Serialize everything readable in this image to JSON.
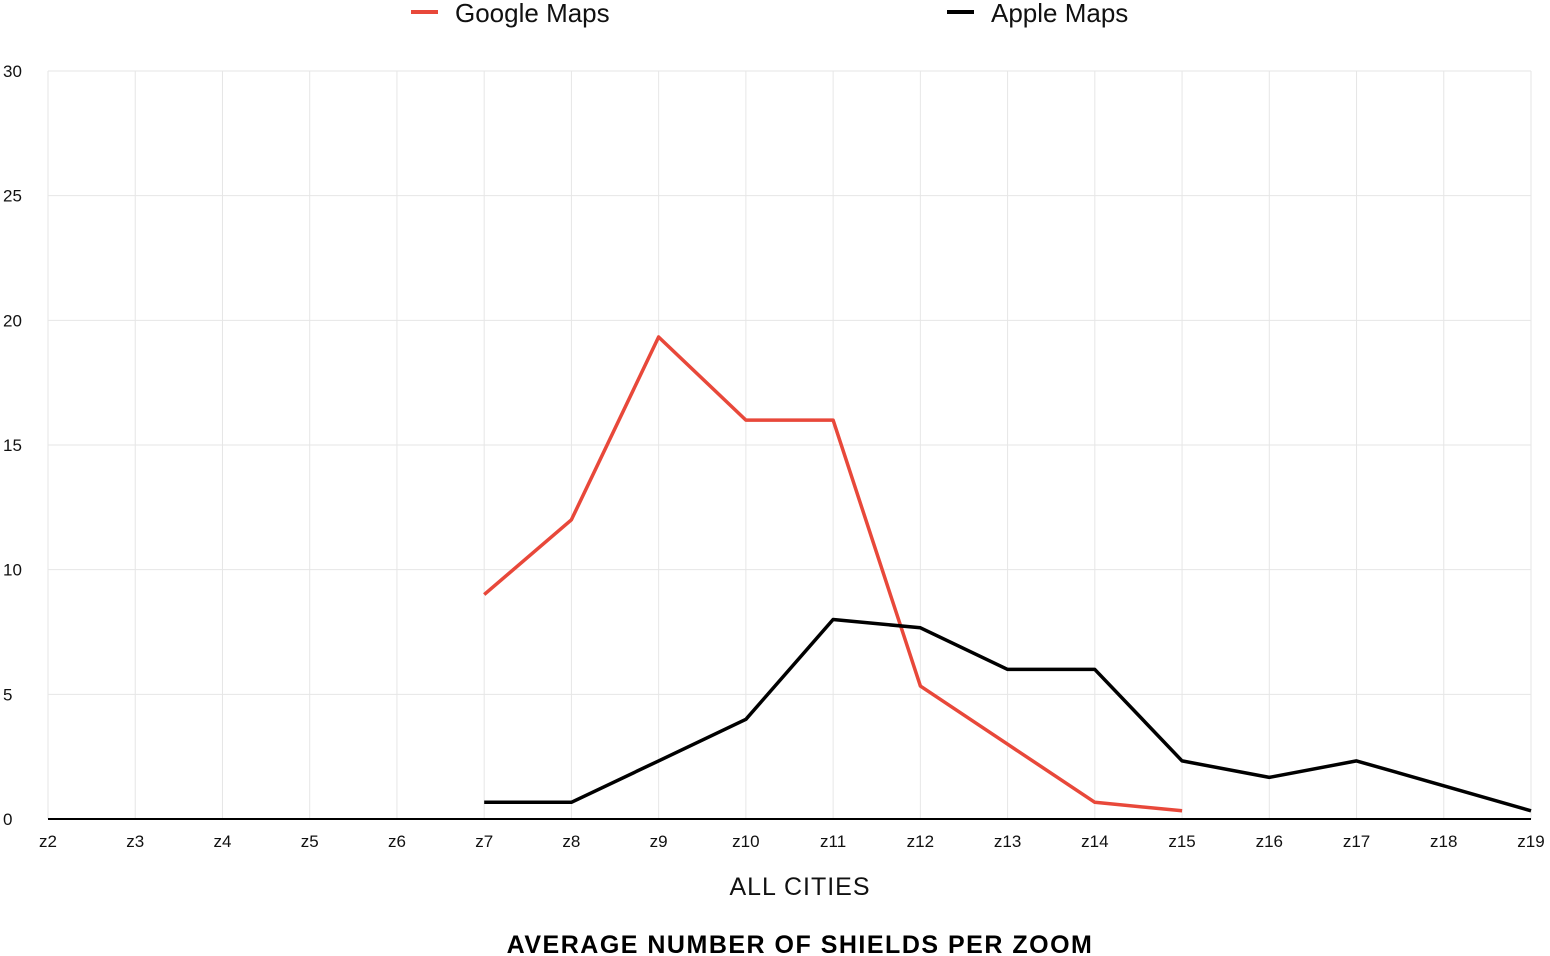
{
  "chart_data": {
    "type": "line",
    "title": "AVERAGE NUMBER OF SHIELDS PER ZOOM",
    "xlabel": "ALL CITIES",
    "ylabel": "",
    "ylim": [
      0,
      30
    ],
    "yticks": [
      0,
      5,
      10,
      15,
      20,
      25,
      30
    ],
    "categories": [
      "z2",
      "z3",
      "z4",
      "z5",
      "z6",
      "z7",
      "z8",
      "z9",
      "z10",
      "z11",
      "z12",
      "z13",
      "z14",
      "z15",
      "z16",
      "z17",
      "z18",
      "z19"
    ],
    "grid": true,
    "legend_position": "top",
    "series": [
      {
        "name": "Google Maps",
        "color": "#e8483a",
        "values": [
          null,
          null,
          null,
          null,
          null,
          9,
          12,
          19.33,
          16,
          16,
          5.33,
          3,
          0.67,
          0.33,
          null,
          null,
          null,
          null
        ]
      },
      {
        "name": "Apple Maps",
        "color": "#000000",
        "values": [
          null,
          null,
          null,
          null,
          null,
          0.67,
          0.67,
          2.33,
          4,
          8,
          7.67,
          6,
          6,
          2.33,
          1.67,
          2.33,
          1.33,
          0.33
        ]
      }
    ]
  }
}
